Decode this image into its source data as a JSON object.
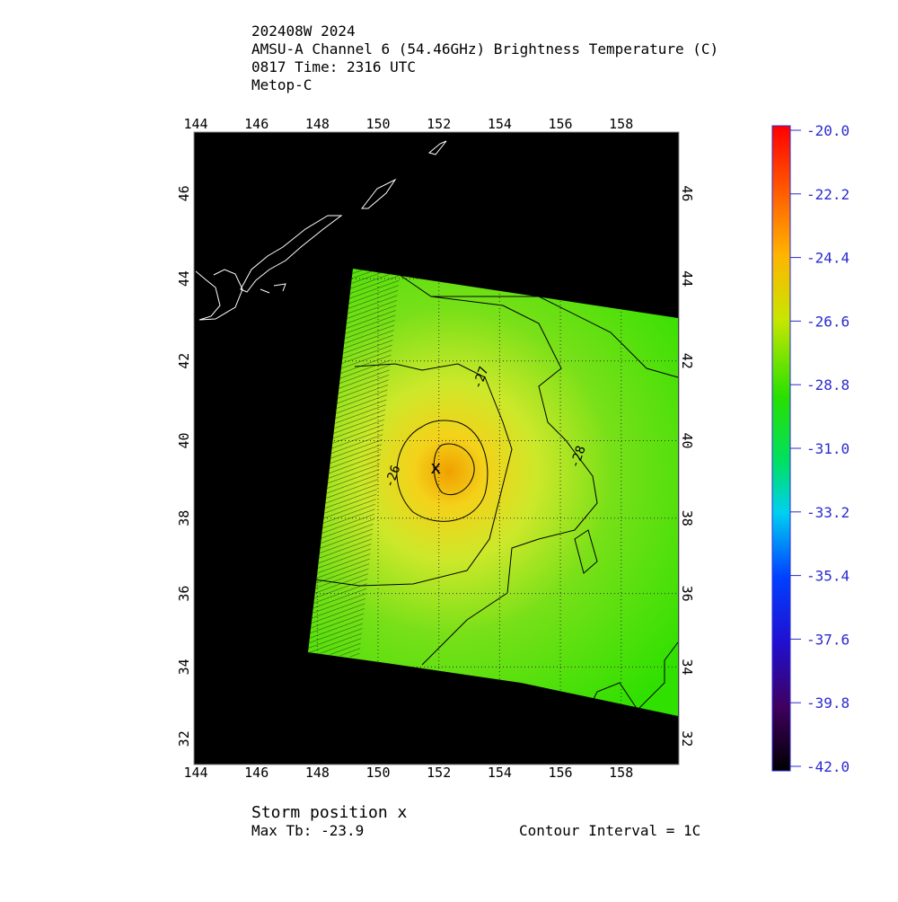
{
  "chart_data": {
    "type": "map",
    "projection": "mercator",
    "title_lines": [
      "202408W 2024",
      "AMSU-A Channel 6 (54.46GHz) Brightness Temperature (C)",
      "0817 Time: 2316 UTC",
      "Metop-C"
    ],
    "xlim": [
      143.94,
      159.9
    ],
    "ylim": [
      31.27,
      47.4
    ],
    "xticks": [
      144,
      146,
      148,
      150,
      152,
      154,
      156,
      158
    ],
    "yticks": [
      32,
      34,
      36,
      38,
      40,
      42,
      44,
      46
    ],
    "grid": true,
    "storm_position": {
      "lon": 151.9,
      "lat": 39.3,
      "label": "x"
    },
    "contour_labels": [
      {
        "text": "-26",
        "lon": 150.6,
        "lat": 39.05
      },
      {
        "text": "-27",
        "lon": 153.5,
        "lat": 41.55
      },
      {
        "text": "-28",
        "lon": 156.7,
        "lat": 39.55
      }
    ],
    "colorbar": {
      "lim": [
        -42,
        -20
      ],
      "ticks": [
        {
          "value": -20,
          "label": "-20.0"
        },
        {
          "value": -22.2,
          "label": "-22.2"
        },
        {
          "value": -24.4,
          "label": "-24.4"
        },
        {
          "value": -26.6,
          "label": "-26.6"
        },
        {
          "value": -28.8,
          "label": "-28.8"
        },
        {
          "value": -31,
          "label": "-31.0"
        },
        {
          "value": -33.2,
          "label": "-33.2"
        },
        {
          "value": -35.4,
          "label": "-35.4"
        },
        {
          "value": -37.6,
          "label": "-37.6"
        },
        {
          "value": -39.8,
          "label": "-39.8"
        },
        {
          "value": -42,
          "label": "-42.0"
        }
      ]
    },
    "footer": {
      "storm_text": "Storm position x",
      "max_tb": "Max Tb: -23.9",
      "contour_interval": "Contour Interval = 1C"
    }
  }
}
